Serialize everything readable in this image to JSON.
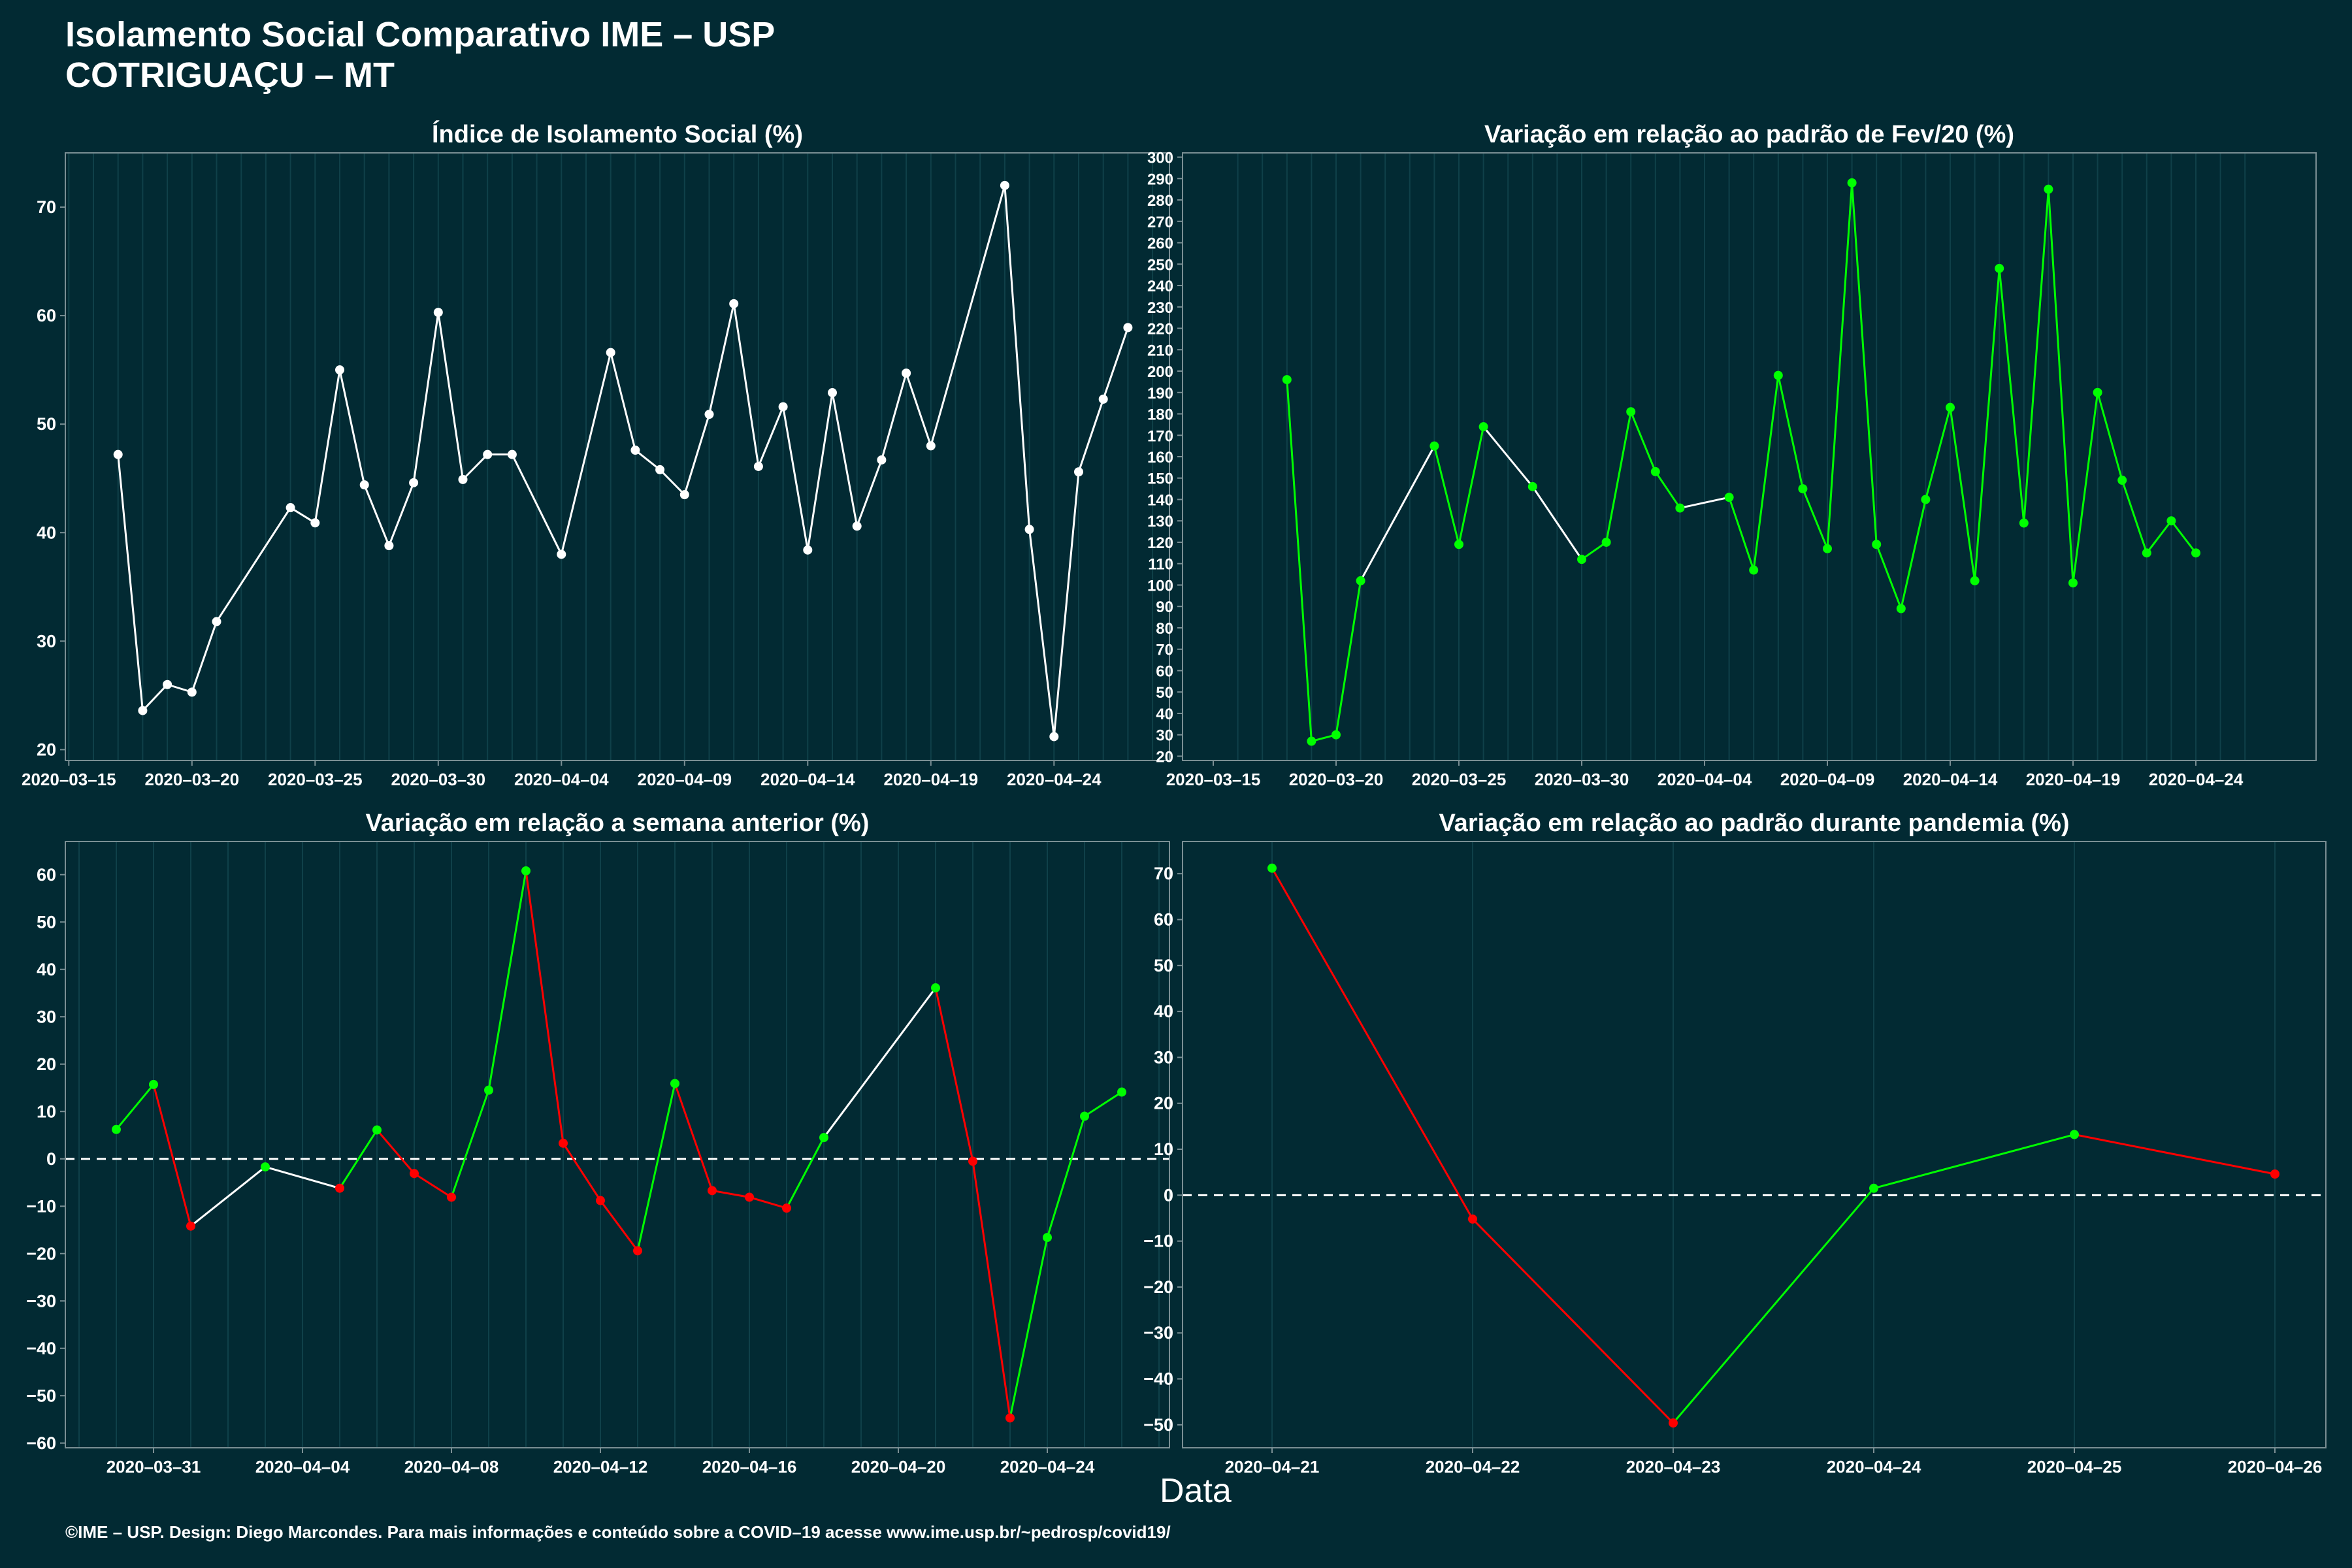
{
  "title": [
    "Isolamento Social Comparativo IME – USP",
    "COTRIGUAÇU – MT"
  ],
  "xlabel": "Data",
  "footer": "©IME – USP. Design: Diego Marcondes. Para mais informações e conteúdo sobre a COVID–19 acesse www.ime.usp.br/~pedrosp/covid19/",
  "colors": {
    "background": "#022a33",
    "positive": "#00ff00",
    "negative": "#ff0000",
    "neutral": "#ffffff"
  },
  "chart_data": [
    {
      "type": "line",
      "title": "Índice de Isolamento Social (%)",
      "x_start": "2020-03-16",
      "x_tick_labels": [
        "2020–03–15",
        "2020–03–20",
        "2020–03–25",
        "2020–03–30",
        "2020–04–04",
        "2020–04–09",
        "2020–04–14",
        "2020–04–19",
        "2020–04–24"
      ],
      "x": [
        "2020-03-17",
        "2020-03-18",
        "2020-03-19",
        "2020-03-20",
        "2020-03-21",
        "2020-03-24",
        "2020-03-25",
        "2020-03-26",
        "2020-03-27",
        "2020-03-28",
        "2020-03-29",
        "2020-03-30",
        "2020-03-31",
        "2020-04-01",
        "2020-04-02",
        "2020-04-04",
        "2020-04-06",
        "2020-04-07",
        "2020-04-08",
        "2020-04-09",
        "2020-04-10",
        "2020-04-11",
        "2020-04-12",
        "2020-04-13",
        "2020-04-14",
        "2020-04-15",
        "2020-04-16",
        "2020-04-17",
        "2020-04-18",
        "2020-04-19",
        "2020-04-22",
        "2020-04-23",
        "2020-04-24",
        "2020-04-25",
        "2020-04-26",
        "2020-04-27"
      ],
      "y": [
        47.2,
        23.6,
        26.0,
        25.3,
        31.8,
        42.3,
        40.9,
        55.0,
        44.4,
        38.8,
        44.6,
        60.3,
        44.9,
        47.2,
        47.2,
        38.0,
        56.6,
        47.6,
        45.8,
        43.5,
        50.9,
        61.1,
        46.1,
        51.6,
        38.4,
        52.9,
        40.6,
        46.7,
        54.7,
        48.0,
        72.0,
        40.3,
        21.2,
        45.6,
        52.3,
        58.9
      ],
      "ylim": [
        19,
        75
      ],
      "y_ticks": [
        20,
        30,
        40,
        50,
        60,
        70
      ],
      "grid": true
    },
    {
      "type": "line",
      "title": "Variação em relação ao padrão de Fev/20 (%)",
      "x_start": "2020-03-15",
      "x_tick_labels": [
        "2020–03–15",
        "2020–03–20",
        "2020–03–25",
        "2020–03–30",
        "2020–04–04",
        "2020–04–09",
        "2020–04–14",
        "2020–04–19",
        "2020–04–24"
      ],
      "x": [
        "2020-03-18",
        "2020-03-19",
        "2020-03-20",
        "2020-03-21",
        "2020-03-24",
        "2020-03-25",
        "2020-03-26",
        "2020-03-28",
        "2020-03-30",
        "2020-03-31",
        "2020-04-01",
        "2020-04-02",
        "2020-04-03",
        "2020-04-05",
        "2020-04-06",
        "2020-04-07",
        "2020-04-08",
        "2020-04-09",
        "2020-04-10",
        "2020-04-11",
        "2020-04-12",
        "2020-04-13",
        "2020-04-14",
        "2020-04-15",
        "2020-04-16",
        "2020-04-17",
        "2020-04-18",
        "2020-04-19",
        "2020-04-20",
        "2020-04-21",
        "2020-04-22",
        "2020-04-23",
        "2020-04-24"
      ],
      "y": [
        196,
        27,
        30,
        102,
        165,
        119,
        174,
        146,
        112,
        120,
        181,
        153,
        136,
        141,
        107,
        198,
        145,
        117,
        288,
        119,
        89,
        140,
        183,
        102,
        248,
        129,
        285,
        101,
        190,
        149,
        115,
        130,
        115
      ],
      "y_full": true,
      "ylim": [
        18,
        302
      ],
      "y_ticks": [
        20,
        30,
        40,
        50,
        60,
        70,
        80,
        90,
        100,
        110,
        120,
        130,
        140,
        150,
        160,
        170,
        180,
        190,
        200,
        210,
        220,
        230,
        240,
        250,
        260,
        270,
        280,
        290,
        300
      ],
      "grid": true
    },
    {
      "type": "line",
      "title": "Variação em relação a semana anterior (%)",
      "x_start": "2020-03-30",
      "x_tick_labels": [
        "2020–03–31",
        "2020–04–04",
        "2020–04–08",
        "2020–04–12",
        "2020–04–16",
        "2020–04–20",
        "2020–04–24"
      ],
      "x": [
        "2020-03-30",
        "2020-03-31",
        "2020-04-01",
        "2020-04-03",
        "2020-04-05",
        "2020-04-06",
        "2020-04-07",
        "2020-04-08",
        "2020-04-09",
        "2020-04-10",
        "2020-04-11",
        "2020-04-12",
        "2020-04-13",
        "2020-04-14",
        "2020-04-15",
        "2020-04-16",
        "2020-04-17",
        "2020-04-18",
        "2020-04-21",
        "2020-04-22",
        "2020-04-23",
        "2020-04-24",
        "2020-04-25",
        "2020-04-26"
      ],
      "y": [
        6.2,
        15.7,
        -14.2,
        -1.7,
        -6.2,
        6.1,
        -3.1,
        -8.1,
        14.5,
        60.8,
        3.3,
        -8.8,
        -19.4,
        15.9,
        -6.7,
        -8.1,
        -10.4,
        4.5,
        36.1,
        -0.5,
        -54.7,
        -16.6,
        9.0,
        14.1
      ],
      "ylim": [
        -61,
        67
      ],
      "y_ticks": [
        -60,
        -50,
        -40,
        -30,
        -20,
        -10,
        0,
        10,
        20,
        30,
        40,
        50,
        60
      ],
      "reference_line": 0,
      "grid": true
    },
    {
      "type": "line",
      "title": "Variação em relação ao padrão durante pandemia (%)",
      "x_start": "2020-04-21",
      "x_tick_labels": [
        "2020–04–21",
        "2020–04–22",
        "2020–04–23",
        "2020–04–24",
        "2020–04–25",
        "2020–04–26"
      ],
      "x": [
        "2020-04-21",
        "2020-04-22",
        "2020-04-23",
        "2020-04-24",
        "2020-04-25",
        "2020-04-26"
      ],
      "y": [
        71.2,
        -5.2,
        -49.6,
        1.5,
        13.2,
        4.6
      ],
      "ylim": [
        -55,
        77
      ],
      "y_ticks": [
        -50,
        -40,
        -30,
        -20,
        -10,
        0,
        10,
        20,
        30,
        40,
        50,
        60,
        70
      ],
      "reference_line": 0,
      "grid": true
    }
  ]
}
